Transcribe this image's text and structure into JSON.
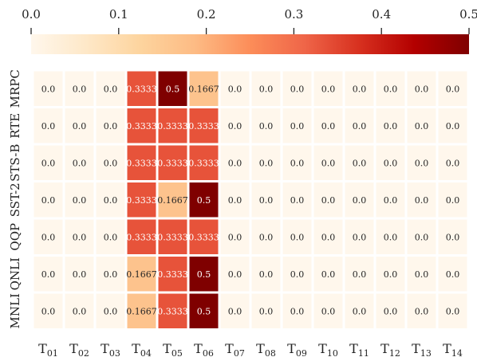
{
  "chart_data": {
    "type": "heatmap",
    "title": "",
    "xlabel": "",
    "ylabel": "",
    "rows": [
      "MRPC",
      "RTE",
      "STS-B",
      "SST-2",
      "QQP",
      "QNLI",
      "MNLI"
    ],
    "columns": [
      {
        "base": "T",
        "sub": "01"
      },
      {
        "base": "T",
        "sub": "02"
      },
      {
        "base": "T",
        "sub": "03"
      },
      {
        "base": "T",
        "sub": "04"
      },
      {
        "base": "T",
        "sub": "05"
      },
      {
        "base": "T",
        "sub": "06"
      },
      {
        "base": "T",
        "sub": "07"
      },
      {
        "base": "T",
        "sub": "08"
      },
      {
        "base": "T",
        "sub": "09"
      },
      {
        "base": "T",
        "sub": "10"
      },
      {
        "base": "T",
        "sub": "11"
      },
      {
        "base": "T",
        "sub": "12"
      },
      {
        "base": "T",
        "sub": "13"
      },
      {
        "base": "T",
        "sub": "14"
      }
    ],
    "values": [
      [
        0.0,
        0.0,
        0.0,
        0.3333,
        0.5,
        0.1667,
        0.0,
        0.0,
        0.0,
        0.0,
        0.0,
        0.0,
        0.0,
        0.0
      ],
      [
        0.0,
        0.0,
        0.0,
        0.3333,
        0.3333,
        0.3333,
        0.0,
        0.0,
        0.0,
        0.0,
        0.0,
        0.0,
        0.0,
        0.0
      ],
      [
        0.0,
        0.0,
        0.0,
        0.3333,
        0.3333,
        0.3333,
        0.0,
        0.0,
        0.0,
        0.0,
        0.0,
        0.0,
        0.0,
        0.0
      ],
      [
        0.0,
        0.0,
        0.0,
        0.3333,
        0.1667,
        0.5,
        0.0,
        0.0,
        0.0,
        0.0,
        0.0,
        0.0,
        0.0,
        0.0
      ],
      [
        0.0,
        0.0,
        0.0,
        0.3333,
        0.3333,
        0.3333,
        0.0,
        0.0,
        0.0,
        0.0,
        0.0,
        0.0,
        0.0,
        0.0
      ],
      [
        0.0,
        0.0,
        0.0,
        0.1667,
        0.3333,
        0.5,
        0.0,
        0.0,
        0.0,
        0.0,
        0.0,
        0.0,
        0.0,
        0.0
      ],
      [
        0.0,
        0.0,
        0.0,
        0.1667,
        0.3333,
        0.5,
        0.0,
        0.0,
        0.0,
        0.0,
        0.0,
        0.0,
        0.0,
        0.0
      ]
    ],
    "cell_labels": [
      [
        "0.0",
        "0.0",
        "0.0",
        "0.3333",
        "0.5",
        "0.1667",
        "0.0",
        "0.0",
        "0.0",
        "0.0",
        "0.0",
        "0.0",
        "0.0",
        "0.0"
      ],
      [
        "0.0",
        "0.0",
        "0.0",
        "0.3333",
        "0.3333",
        "0.3333",
        "0.0",
        "0.0",
        "0.0",
        "0.0",
        "0.0",
        "0.0",
        "0.0",
        "0.0"
      ],
      [
        "0.0",
        "0.0",
        "0.0",
        "0.3333",
        "0.3333",
        "0.3333",
        "0.0",
        "0.0",
        "0.0",
        "0.0",
        "0.0",
        "0.0",
        "0.0",
        "0.0"
      ],
      [
        "0.0",
        "0.0",
        "0.0",
        "0.3333",
        "0.1667",
        "0.5",
        "0.0",
        "0.0",
        "0.0",
        "0.0",
        "0.0",
        "0.0",
        "0.0",
        "0.0"
      ],
      [
        "0.0",
        "0.0",
        "0.0",
        "0.3333",
        "0.3333",
        "0.3333",
        "0.0",
        "0.0",
        "0.0",
        "0.0",
        "0.0",
        "0.0",
        "0.0",
        "0.0"
      ],
      [
        "0.0",
        "0.0",
        "0.0",
        "0.1667",
        "0.3333",
        "0.5",
        "0.0",
        "0.0",
        "0.0",
        "0.0",
        "0.0",
        "0.0",
        "0.0",
        "0.0"
      ],
      [
        "0.0",
        "0.0",
        "0.0",
        "0.1667",
        "0.3333",
        "0.5",
        "0.0",
        "0.0",
        "0.0",
        "0.0",
        "0.0",
        "0.0",
        "0.0",
        "0.0"
      ]
    ],
    "colorbar": {
      "position": "top",
      "range": [
        0.0,
        0.5
      ],
      "ticks": [
        0.0,
        0.1,
        0.2,
        0.3,
        0.4,
        0.5
      ],
      "tick_labels": [
        "0.0",
        "0.1",
        "0.2",
        "0.3",
        "0.4",
        "0.5"
      ],
      "colormap": "OrRd",
      "stops": [
        "#fff7ec",
        "#fee8c8",
        "#fdd49e",
        "#fdbb84",
        "#fc8d59",
        "#ef6548",
        "#d7301f",
        "#b30000",
        "#7f0000"
      ]
    },
    "grid": false
  }
}
